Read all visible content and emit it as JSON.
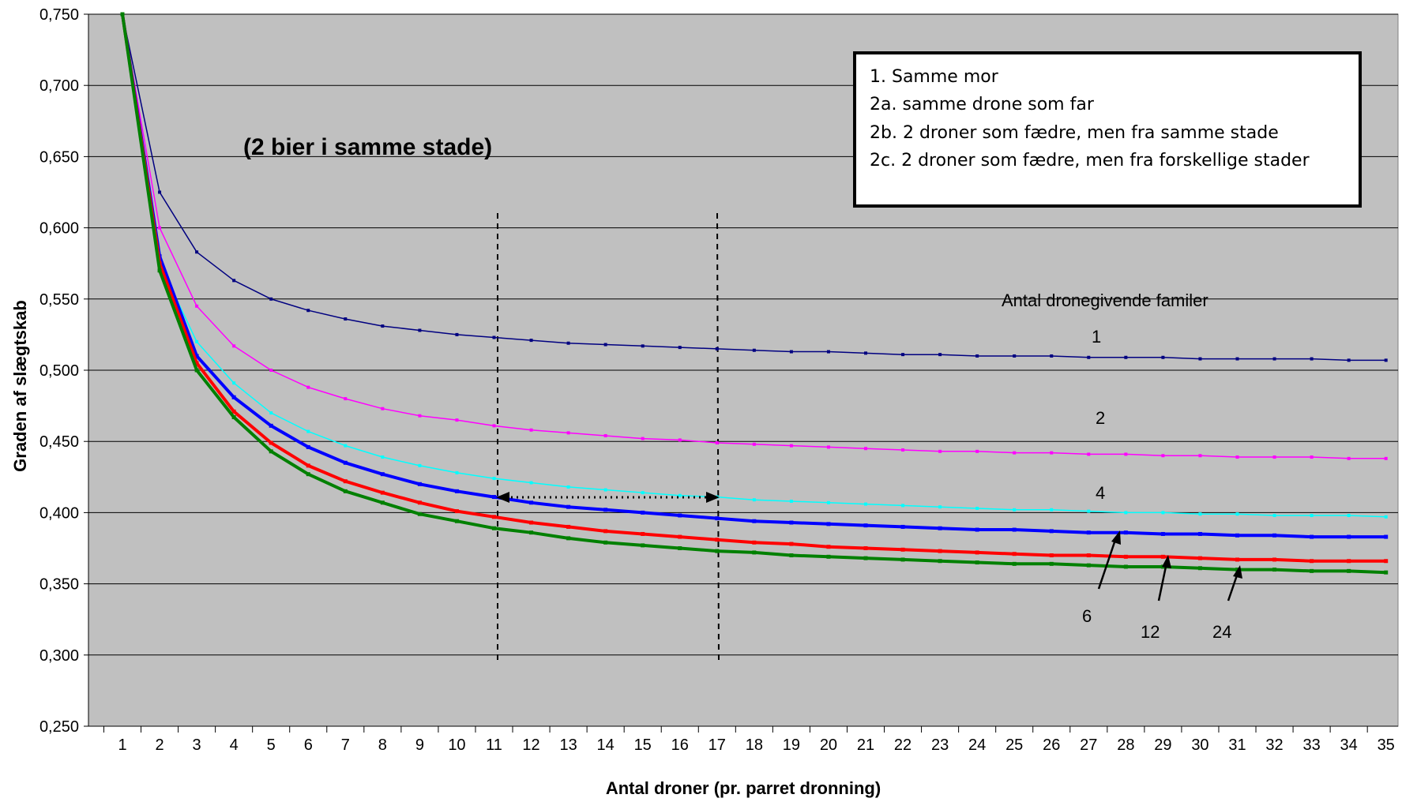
{
  "chart_data": {
    "type": "line",
    "title": "",
    "xlabel": "Antal droner (pr. parret dronning)",
    "ylabel": "Graden af slægtskab",
    "xlim": [
      1,
      35
    ],
    "ylim": [
      0.25,
      0.75
    ],
    "y_ticks": [
      "0,250",
      "0,300",
      "0,350",
      "0,400",
      "0,450",
      "0,500",
      "0,550",
      "0,600",
      "0,650",
      "0,700",
      "0,750"
    ],
    "x_ticks": [
      "1",
      "2",
      "3",
      "4",
      "5",
      "6",
      "7",
      "8",
      "9",
      "10",
      "11",
      "12",
      "13",
      "14",
      "15",
      "16",
      "17",
      "18",
      "19",
      "20",
      "21",
      "22",
      "23",
      "24",
      "25",
      "26",
      "27",
      "28",
      "29",
      "30",
      "31",
      "32",
      "33",
      "34",
      "35"
    ],
    "annotation_note": "(2 bier i samme stade)",
    "families_heading": "Antal dronegivende familer",
    "legend_lines": [
      "1. Samme mor",
      "2a. samme drone som far",
      "2b. 2 droner som fædre, men fra samme stade",
      "2c. 2 droner som fædre, men fra forskellige stader"
    ],
    "series": [
      {
        "name": "1",
        "color": "#000080",
        "width": 1.5,
        "values": [
          0.75,
          0.625,
          0.583,
          0.563,
          0.55,
          0.542,
          0.536,
          0.531,
          0.528,
          0.525,
          0.523,
          0.521,
          0.519,
          0.518,
          0.517,
          0.516,
          0.515,
          0.514,
          0.513,
          0.513,
          0.512,
          0.511,
          0.511,
          0.51,
          0.51,
          0.51,
          0.509,
          0.509,
          0.509,
          0.508,
          0.508,
          0.508,
          0.508,
          0.507,
          0.507
        ]
      },
      {
        "name": "2",
        "color": "#ff00ff",
        "width": 1.5,
        "values": [
          0.75,
          0.6,
          0.545,
          0.517,
          0.5,
          0.488,
          0.48,
          0.473,
          0.468,
          0.465,
          0.461,
          0.458,
          0.456,
          0.454,
          0.452,
          0.451,
          0.449,
          0.448,
          0.447,
          0.446,
          0.445,
          0.444,
          0.443,
          0.443,
          0.442,
          0.442,
          0.441,
          0.441,
          0.44,
          0.44,
          0.439,
          0.439,
          0.439,
          0.438,
          0.438
        ]
      },
      {
        "name": "4",
        "color": "#00ffff",
        "width": 1.5,
        "values": [
          0.75,
          0.575,
          0.52,
          0.491,
          0.47,
          0.457,
          0.447,
          0.439,
          0.433,
          0.428,
          0.424,
          0.421,
          0.418,
          0.416,
          0.414,
          0.412,
          0.411,
          0.409,
          0.408,
          0.407,
          0.406,
          0.405,
          0.404,
          0.403,
          0.402,
          0.402,
          0.401,
          0.4,
          0.4,
          0.399,
          0.399,
          0.398,
          0.398,
          0.398,
          0.397
        ]
      },
      {
        "name": "6",
        "color": "#0000ff",
        "width": 4,
        "values": [
          0.75,
          0.58,
          0.51,
          0.481,
          0.461,
          0.446,
          0.435,
          0.427,
          0.42,
          0.415,
          0.411,
          0.407,
          0.404,
          0.402,
          0.4,
          0.398,
          0.396,
          0.394,
          0.393,
          0.392,
          0.391,
          0.39,
          0.389,
          0.388,
          0.388,
          0.387,
          0.386,
          0.386,
          0.385,
          0.385,
          0.384,
          0.384,
          0.383,
          0.383,
          0.383
        ]
      },
      {
        "name": "12",
        "color": "#ff0000",
        "width": 4,
        "values": [
          0.75,
          0.575,
          0.505,
          0.471,
          0.449,
          0.433,
          0.422,
          0.414,
          0.407,
          0.401,
          0.397,
          0.393,
          0.39,
          0.387,
          0.385,
          0.383,
          0.381,
          0.379,
          0.378,
          0.376,
          0.375,
          0.374,
          0.373,
          0.372,
          0.371,
          0.37,
          0.37,
          0.369,
          0.369,
          0.368,
          0.367,
          0.367,
          0.366,
          0.366,
          0.366
        ]
      },
      {
        "name": "24",
        "color": "#008000",
        "width": 4,
        "values": [
          0.75,
          0.57,
          0.5,
          0.467,
          0.443,
          0.427,
          0.415,
          0.407,
          0.399,
          0.394,
          0.389,
          0.386,
          0.382,
          0.379,
          0.377,
          0.375,
          0.373,
          0.372,
          0.37,
          0.369,
          0.368,
          0.367,
          0.366,
          0.365,
          0.364,
          0.364,
          0.363,
          0.362,
          0.362,
          0.361,
          0.36,
          0.36,
          0.359,
          0.359,
          0.358
        ]
      }
    ]
  }
}
